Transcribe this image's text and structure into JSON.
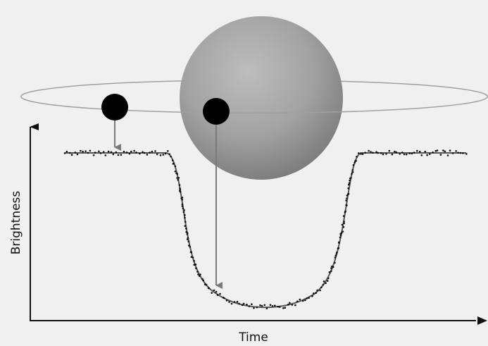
{
  "diagram": {
    "title": "",
    "axes": {
      "x_label": "Time",
      "y_label": "Brightness"
    },
    "light_curve": {
      "out_of_transit_level": 1.0,
      "in_transit_minimum": 0.0
    },
    "colors": {
      "background": "#f0f0f0",
      "star_light": "#b8b8b8",
      "star_dark": "#7d7d7d",
      "planet": "#000000",
      "orbit": "#9a9a9a",
      "curve": "#555555",
      "points": "#111111",
      "arrows": "#7a7a7a"
    },
    "icons": [
      "star-sphere",
      "planet-disk",
      "orbit-ellipse",
      "pointer-arrow"
    ]
  }
}
